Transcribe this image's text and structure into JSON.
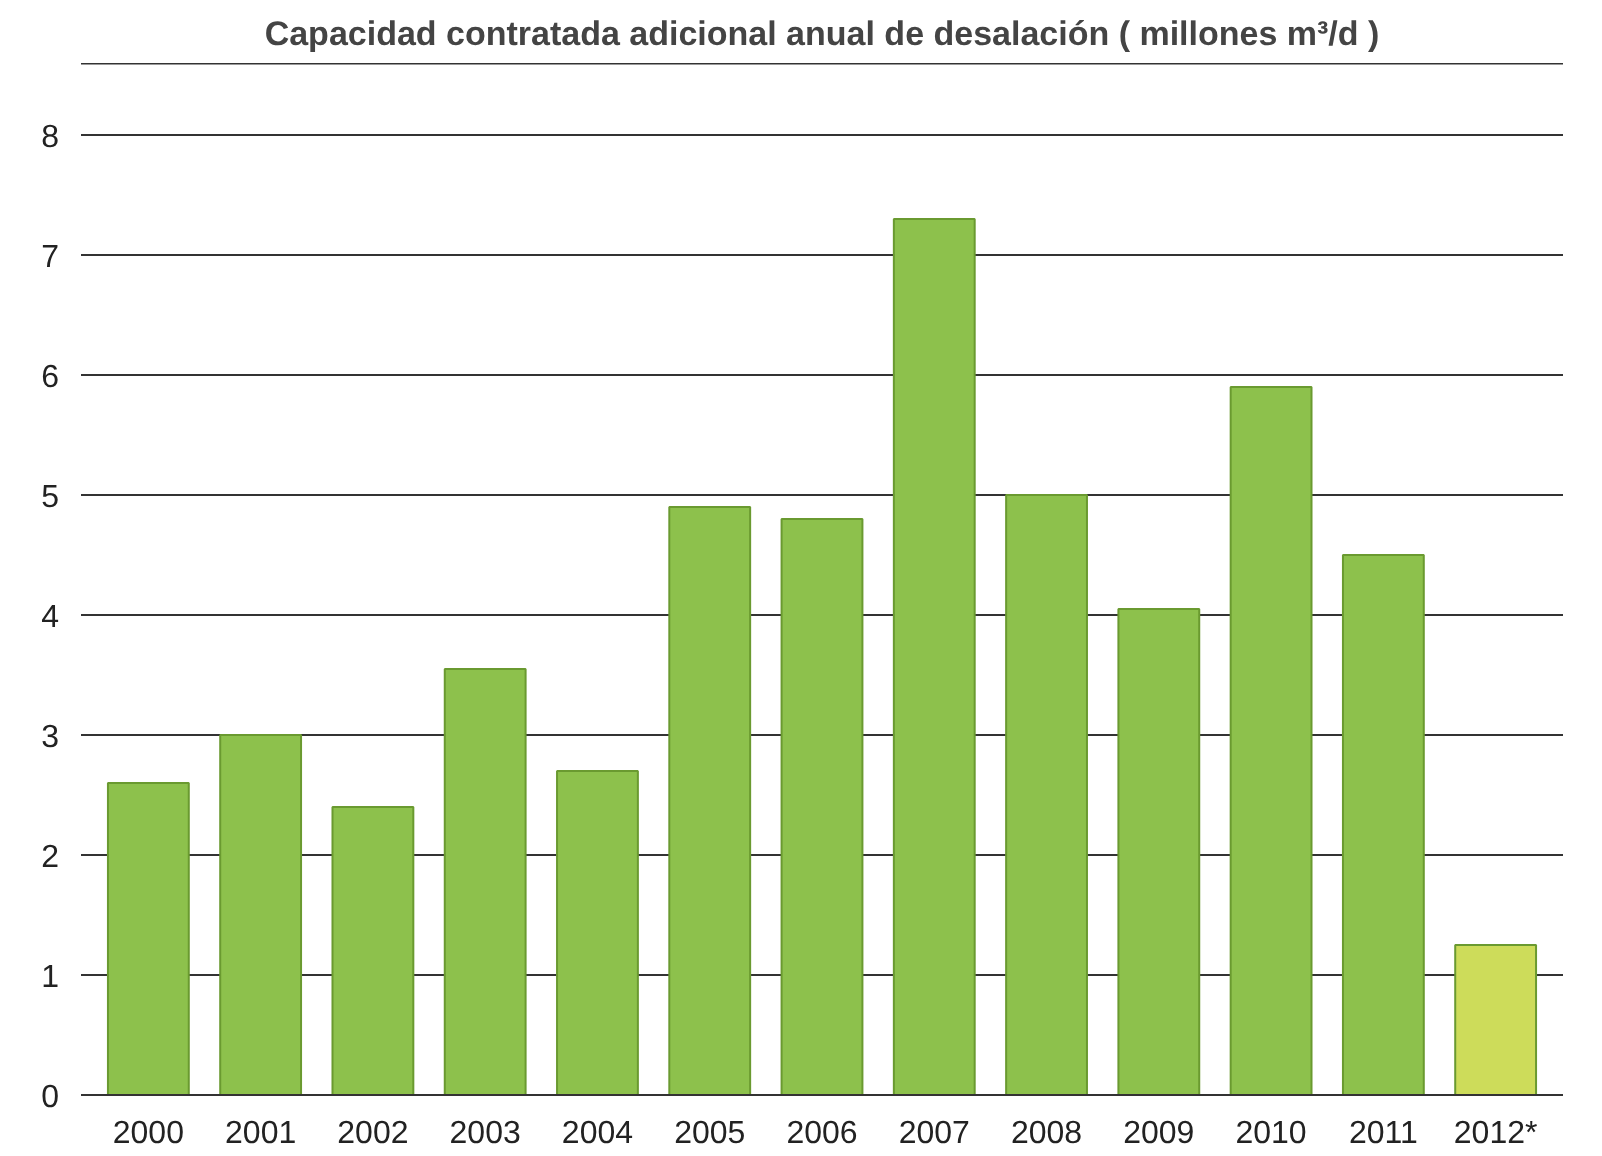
{
  "chart_data": {
    "type": "bar",
    "title": "Capacidad contratada adicional anual de desalación ( millones m³/d )",
    "categories": [
      "2000",
      "2001",
      "2002",
      "2003",
      "2004",
      "2005",
      "2006",
      "2007",
      "2008",
      "2009",
      "2010",
      "2011",
      "2012*"
    ],
    "values": [
      2.6,
      3.0,
      2.4,
      3.55,
      2.7,
      4.9,
      4.8,
      7.3,
      5.0,
      4.05,
      5.9,
      4.5,
      1.25
    ],
    "colors": [
      "#8dc14c",
      "#8dc14c",
      "#8dc14c",
      "#8dc14c",
      "#8dc14c",
      "#8dc14c",
      "#8dc14c",
      "#8dc14c",
      "#8dc14c",
      "#8dc14c",
      "#8dc14c",
      "#8dc14c",
      "#cddc5a"
    ],
    "ylim": [
      0,
      8.6
    ],
    "yticks": [
      0,
      1,
      2,
      3,
      4,
      5,
      6,
      7,
      8
    ],
    "grid": "y"
  }
}
